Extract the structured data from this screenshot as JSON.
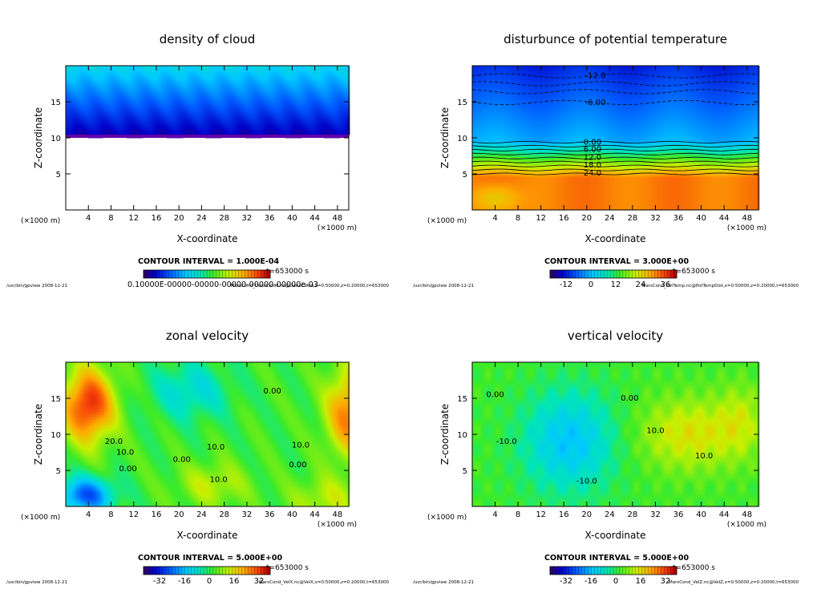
{
  "chart_data": [
    {
      "type": "heatmap",
      "title": "density of cloud",
      "xlabel": "X-coordinate",
      "ylabel": "Z-coordinate",
      "x_unit": "(×1000 m)",
      "x_ticks": [
        4,
        8,
        12,
        16,
        20,
        24,
        28,
        32,
        36,
        40,
        44,
        48
      ],
      "y_ticks": [
        5,
        10,
        15
      ],
      "xlim": [
        0,
        50
      ],
      "ylim": [
        0,
        20
      ],
      "field": "cloud",
      "contour_interval": "CONTOUR INTERVAL = 1.000E-04",
      "time_label": "t=653000 s",
      "colorbar_labels_text": "0.10000E-00000-00000-00000-00000-00000e-03",
      "colorbar_ticks": [],
      "footer_left": "/usr/bin/gpview   2008-12-21",
      "footer_right": "MarsCond_DensCloud.nc@DensCloud,x=0:50000,z=0:20000,t=653000",
      "contour_labels": []
    },
    {
      "type": "heatmap",
      "title": "disturbunce of potential temperature",
      "xlabel": "X-coordinate",
      "ylabel": "Z-coordinate",
      "x_unit": "(×1000 m)",
      "x_ticks": [
        4,
        8,
        12,
        16,
        20,
        24,
        28,
        32,
        36,
        40,
        44,
        48
      ],
      "y_ticks": [
        5,
        10,
        15
      ],
      "xlim": [
        0,
        50
      ],
      "ylim": [
        0,
        20
      ],
      "field": "temp",
      "contour_interval": "CONTOUR INTERVAL = 3.000E+00",
      "time_label": "t=653000 s",
      "colorbar_ticks": [
        "-12",
        "0",
        "12",
        "24",
        "36"
      ],
      "footer_left": "/usr/bin/gpview   2008-12-21",
      "footer_right": "MarsCond_PotTemp.nc@PotTempDist,x=0:50000,z=0:20000,t=653000",
      "contour_labels": [
        {
          "text": "-12.0",
          "x": 21.5,
          "z": 18.6
        },
        {
          "text": "-6.00",
          "x": 21.5,
          "z": 14.9
        },
        {
          "text": "0.00",
          "x": 21.0,
          "z": 9.4
        },
        {
          "text": "6.00",
          "x": 21.0,
          "z": 8.4
        },
        {
          "text": "12.0",
          "x": 21.0,
          "z": 7.3
        },
        {
          "text": "18.0",
          "x": 21.0,
          "z": 6.2
        },
        {
          "text": "24.0",
          "x": 21.0,
          "z": 5.1
        }
      ]
    },
    {
      "type": "heatmap",
      "title": "zonal velocity",
      "xlabel": "X-coordinate",
      "ylabel": "Z-coordinate",
      "x_unit": "(×1000 m)",
      "x_ticks": [
        4,
        8,
        12,
        16,
        20,
        24,
        28,
        32,
        36,
        40,
        44,
        48
      ],
      "y_ticks": [
        5,
        10,
        15
      ],
      "xlim": [
        0,
        50
      ],
      "ylim": [
        0,
        20
      ],
      "field": "zonal",
      "contour_interval": "CONTOUR INTERVAL = 5.000E+00",
      "time_label": "t=653000 s",
      "colorbar_ticks": [
        "-32",
        "-16",
        "0",
        "16",
        "32"
      ],
      "footer_left": "/usr/bin/gpview   2008-12-21",
      "footer_right": "MarsCond_VelX.nc@VelX,x=0:50000,z=0:20000,t=653000",
      "contour_labels": [
        {
          "text": "20.0",
          "x": 8.5,
          "z": 9.0
        },
        {
          "text": "10.0",
          "x": 10.5,
          "z": 7.5
        },
        {
          "text": "0.00",
          "x": 11.0,
          "z": 5.2
        },
        {
          "text": "0.00",
          "x": 20.5,
          "z": 6.5
        },
        {
          "text": "10.0",
          "x": 26.5,
          "z": 8.2
        },
        {
          "text": "0.00",
          "x": 36.5,
          "z": 16.0
        },
        {
          "text": "10.0",
          "x": 41.5,
          "z": 8.5
        },
        {
          "text": "0.00",
          "x": 41.0,
          "z": 5.8
        },
        {
          "text": "10.0",
          "x": 27.0,
          "z": 3.7
        }
      ]
    },
    {
      "type": "heatmap",
      "title": "vertical velocity",
      "xlabel": "X-coordinate",
      "ylabel": "Z-coordinate",
      "x_unit": "(×1000 m)",
      "x_ticks": [
        4,
        8,
        12,
        16,
        20,
        24,
        28,
        32,
        36,
        40,
        44,
        48
      ],
      "y_ticks": [
        5,
        10,
        15
      ],
      "xlim": [
        0,
        50
      ],
      "ylim": [
        0,
        20
      ],
      "field": "vertical",
      "contour_interval": "CONTOUR INTERVAL = 5.000E+00",
      "time_label": "t=653000 s",
      "colorbar_ticks": [
        "-32",
        "-16",
        "0",
        "16",
        "32"
      ],
      "footer_left": "/usr/bin/gpview   2008-12-21",
      "footer_right": "MarsCond_VelZ.nc@VelZ,x=0:50000,z=0:20000,t=653000",
      "contour_labels": [
        {
          "text": "0.00",
          "x": 4.0,
          "z": 15.5
        },
        {
          "text": "-10.0",
          "x": 6.0,
          "z": 9.0
        },
        {
          "text": "0.00",
          "x": 27.5,
          "z": 15.0
        },
        {
          "text": "10.0",
          "x": 32.0,
          "z": 10.5
        },
        {
          "text": "10.0",
          "x": 40.5,
          "z": 7.0
        },
        {
          "text": "-10.0",
          "x": 20.0,
          "z": 3.5
        }
      ]
    }
  ]
}
